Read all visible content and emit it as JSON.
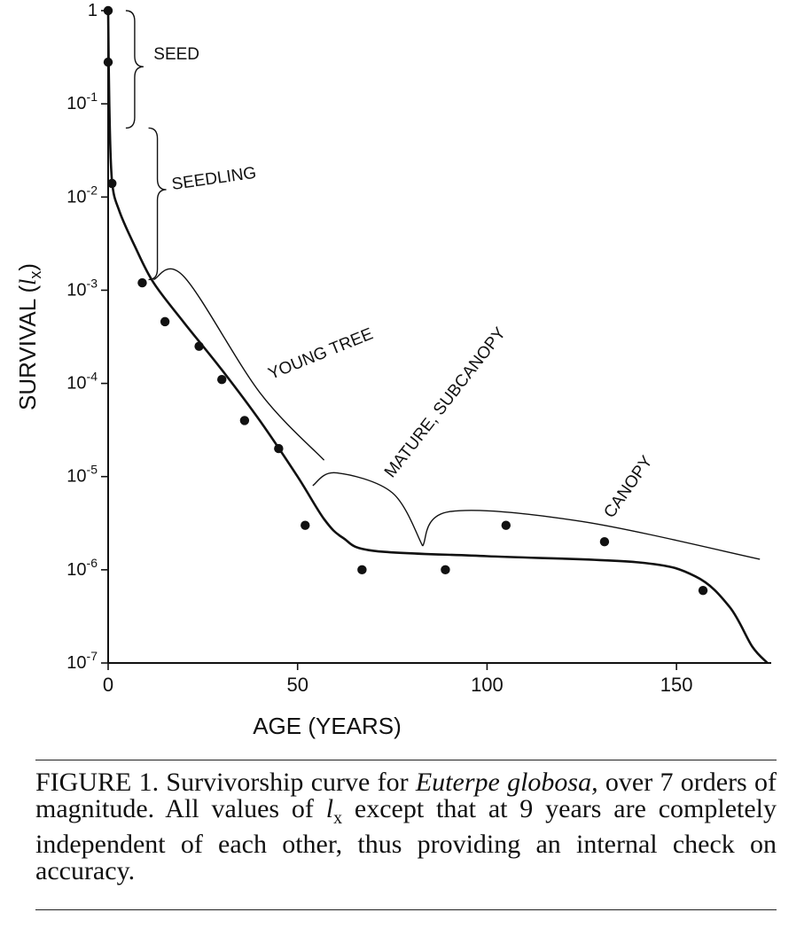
{
  "chart_data": {
    "type": "scatter",
    "xlabel": "AGE (YEARS)",
    "ylabel": "SURVIVAL (",
    "ylabel_symbol": "l",
    "ylabel_subscript": "x",
    "ylabel_close": ")",
    "x_scale": "linear",
    "y_scale": "log",
    "xlim": [
      0,
      175
    ],
    "ylim": [
      1e-07,
      1
    ],
    "grid": false,
    "legend": "none",
    "x_ticks": [
      {
        "value": 0,
        "label": "0"
      },
      {
        "value": 50,
        "label": "50"
      },
      {
        "value": 100,
        "label": "100"
      },
      {
        "value": 150,
        "label": "150"
      }
    ],
    "y_ticks": [
      {
        "value": 1,
        "label": "1",
        "base": "1",
        "exp": ""
      },
      {
        "value": 0.1,
        "label": "10^-1",
        "base": "10",
        "exp": "-1"
      },
      {
        "value": 0.01,
        "label": "10^-2",
        "base": "10",
        "exp": "-2"
      },
      {
        "value": 0.001,
        "label": "10^-3",
        "base": "10",
        "exp": "-3"
      },
      {
        "value": 0.0001,
        "label": "10^-4",
        "base": "10",
        "exp": "-4"
      },
      {
        "value": 1e-05,
        "label": "10^-5",
        "base": "10",
        "exp": "-5"
      },
      {
        "value": 1e-06,
        "label": "10^-6",
        "base": "10",
        "exp": "-6"
      },
      {
        "value": 1e-07,
        "label": "10^-7",
        "base": "10",
        "exp": "-7"
      }
    ],
    "series": [
      {
        "type": "scatter",
        "points": [
          {
            "x": 0,
            "y": 1
          },
          {
            "x": 0,
            "y": 0.28
          },
          {
            "x": 1,
            "y": 0.014
          },
          {
            "x": 9,
            "y": 0.0012
          },
          {
            "x": 15,
            "y": 0.00046
          },
          {
            "x": 24,
            "y": 0.00025
          },
          {
            "x": 30,
            "y": 0.00011
          },
          {
            "x": 36,
            "y": 4e-05
          },
          {
            "x": 45,
            "y": 2e-05
          },
          {
            "x": 52,
            "y": 3e-06
          },
          {
            "x": 67,
            "y": 1e-06
          },
          {
            "x": 89,
            "y": 1e-06
          },
          {
            "x": 105,
            "y": 3e-06
          },
          {
            "x": 131,
            "y": 2e-06
          },
          {
            "x": 157,
            "y": 6e-07
          }
        ]
      },
      {
        "type": "line",
        "points": [
          {
            "x": 0,
            "y": 1
          },
          {
            "x": 0.3,
            "y": 0.1
          },
          {
            "x": 1,
            "y": 0.015
          },
          {
            "x": 3,
            "y": 0.007
          },
          {
            "x": 7,
            "y": 0.003
          },
          {
            "x": 12,
            "y": 0.0012
          },
          {
            "x": 20,
            "y": 0.00045
          },
          {
            "x": 30,
            "y": 0.00014
          },
          {
            "x": 40,
            "y": 4e-05
          },
          {
            "x": 50,
            "y": 1e-05
          },
          {
            "x": 57,
            "y": 3.5e-06
          },
          {
            "x": 62,
            "y": 2.2e-06
          },
          {
            "x": 70,
            "y": 1.6e-06
          },
          {
            "x": 100,
            "y": 1.4e-06
          },
          {
            "x": 140,
            "y": 1.2e-06
          },
          {
            "x": 155,
            "y": 8.5e-07
          },
          {
            "x": 164,
            "y": 4e-07
          },
          {
            "x": 170,
            "y": 1.5e-07
          },
          {
            "x": 174,
            "y": 1e-07
          }
        ]
      }
    ],
    "annotations": [
      {
        "text": "SEED",
        "x": 12,
        "y": 0.3,
        "rotate": 0
      },
      {
        "text": "SEEDLING",
        "x": 17,
        "y": 0.012,
        "rotate": -8
      },
      {
        "text": "YOUNG TREE",
        "x": 43,
        "y": 0.00011,
        "rotate": -22
      },
      {
        "text": "MATURE, SUBCANOPY",
        "x": 75,
        "y": 9.5e-06,
        "rotate": -52
      },
      {
        "text": "CANOPY",
        "x": 133,
        "y": 3.5e-06,
        "rotate": -55
      }
    ],
    "brackets": [
      {
        "kind": "vertical",
        "x": 7,
        "y_from": 1,
        "y_to": 0.055,
        "tip": 0.25
      },
      {
        "kind": "vertical",
        "x": 13,
        "y_from": 0.055,
        "y_to": 0.0013,
        "tip": 0.012
      },
      {
        "kind": "diagonal",
        "points": [
          [
            12,
            0.0013
          ],
          [
            20,
            0.0014
          ],
          [
            40,
            8e-05
          ],
          [
            57,
            1.5e-05
          ]
        ],
        "tip": 8.9e-05
      },
      {
        "kind": "diagonal",
        "points": [
          [
            54,
            8e-06
          ],
          [
            60,
            1.1e-05
          ],
          [
            75,
            6.7e-06
          ],
          [
            83,
            1.8e-06
          ]
        ],
        "tip": 8.5e-06
      },
      {
        "kind": "horizontal",
        "points": [
          [
            83,
            1.8e-06
          ],
          [
            90,
            4.2e-06
          ],
          [
            125,
            3.3e-06
          ],
          [
            172,
            1.3e-06
          ]
        ],
        "tip": 4.1e-06
      }
    ]
  },
  "caption": {
    "label": "FIGURE 1.",
    "text_a": "Survivorship curve for ",
    "species": "Euterpe globosa,",
    "text_b": " over 7 orders of magnitude.  All values of ",
    "symbol": "l",
    "subscript": "x",
    "text_c": " except that at 9 years are completely independent of each other, thus providing an internal check on accuracy."
  }
}
